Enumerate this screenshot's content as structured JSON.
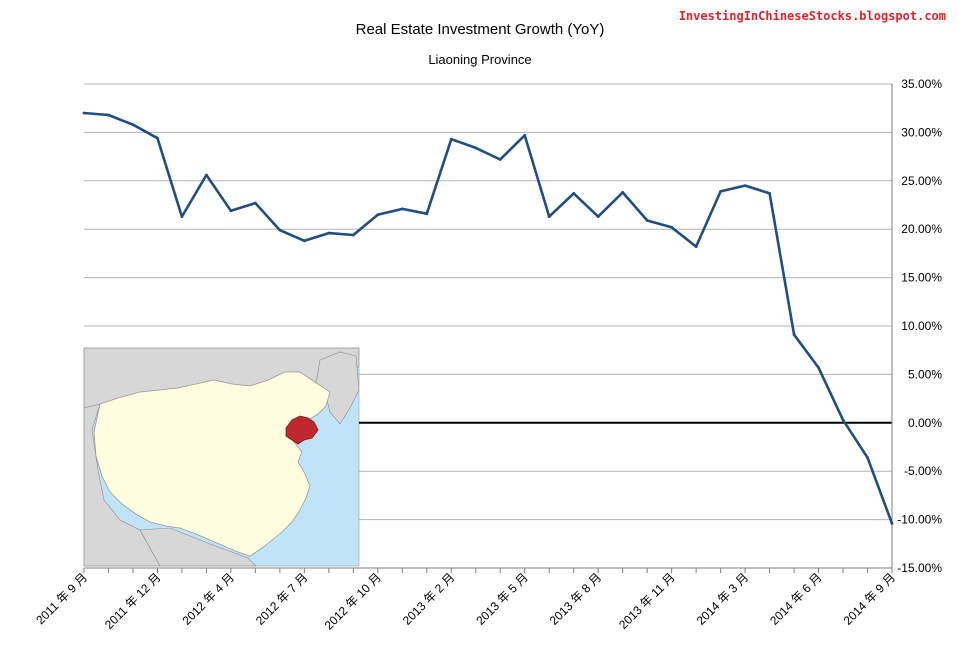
{
  "watermark": "InvestingInChineseStocks.blogspot.com",
  "inset_map": {
    "highlight_color": "#c0282d",
    "land_color": "#fffde0",
    "neighbor_color": "#d7d7d7",
    "water_color": "#bfe3f7"
  },
  "chart_data": {
    "type": "line",
    "title": "Real Estate Investment Growth (YoY)",
    "subtitle": "Liaoning Province",
    "ylim": [
      -15,
      35
    ],
    "y_ticks": [
      "35.00%",
      "30.00%",
      "25.00%",
      "20.00%",
      "15.00%",
      "10.00%",
      "5.00%",
      "0.00%",
      "-5.00%",
      "-10.00%",
      "-15.00%"
    ],
    "y_tick_values": [
      35,
      30,
      25,
      20,
      15,
      10,
      5,
      0,
      -5,
      -10,
      -15
    ],
    "grid": true,
    "zero_line": true,
    "x_tick_labels": [
      {
        "index": 0,
        "label": "2011 年 9 月"
      },
      {
        "index": 3,
        "label": "2011 年 12 月"
      },
      {
        "index": 6,
        "label": "2012 年 4 月"
      },
      {
        "index": 9,
        "label": "2012 年 7 月"
      },
      {
        "index": 12,
        "label": "2012 年 10 月"
      },
      {
        "index": 15,
        "label": "2013 年 2 月"
      },
      {
        "index": 18,
        "label": "2013 年 5 月"
      },
      {
        "index": 21,
        "label": "2013 年 8 月"
      },
      {
        "index": 24,
        "label": "2013 年 11 月"
      },
      {
        "index": 27,
        "label": "2014 年 3 月"
      },
      {
        "index": 30,
        "label": "2014 年 6 月"
      },
      {
        "index": 33,
        "label": "2014 年 9 月"
      }
    ],
    "series": [
      {
        "color": "#1f4e84",
        "values": [
          32.0,
          31.8,
          30.8,
          29.4,
          21.3,
          25.6,
          21.9,
          22.7,
          19.9,
          18.8,
          19.6,
          19.4,
          21.5,
          22.1,
          21.6,
          29.3,
          28.4,
          27.2,
          29.7,
          21.3,
          23.7,
          21.3,
          23.8,
          20.9,
          20.2,
          18.2,
          23.9,
          24.5,
          23.7,
          9.1,
          5.7,
          0.3,
          -3.6,
          -10.4
        ]
      }
    ]
  }
}
